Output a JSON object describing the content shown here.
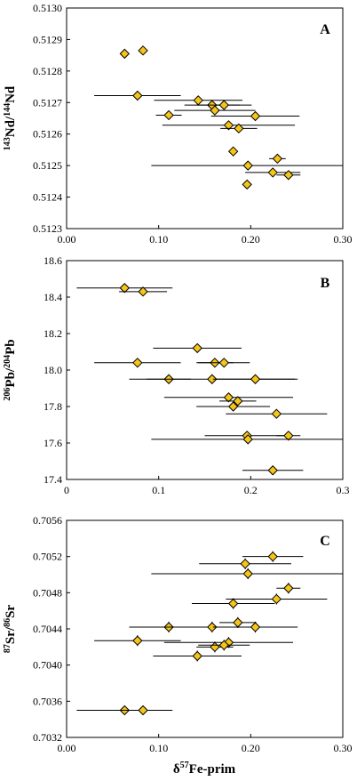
{
  "chart_data": [
    {
      "type": "scatter",
      "panel_label": "A",
      "ylabel": {
        "sup1": "143",
        "base1": "Nd/",
        "sup2": "144",
        "base2": "Nd"
      },
      "xlim": [
        0,
        0.3
      ],
      "ylim": [
        0.5123,
        0.513
      ],
      "x_ticks": [
        "0.00",
        "0.10",
        "0.20",
        "0.30"
      ],
      "y_ticks": [
        "0.5123",
        "0.5124",
        "0.5125",
        "0.5126",
        "0.5127",
        "0.5128",
        "0.5129",
        "0.5130"
      ],
      "y_tick_values": [
        0.5123,
        0.5124,
        0.5125,
        0.5126,
        0.5127,
        0.5128,
        0.5129,
        0.513
      ],
      "marker_color": "#f5c518",
      "points": [
        {
          "x": 0.063,
          "y": 0.512855,
          "xerr": 0,
          "yerr": 1e-05
        },
        {
          "x": 0.083,
          "y": 0.512865,
          "xerr": 0,
          "yerr": 1e-05
        },
        {
          "x": 0.077,
          "y": 0.512722,
          "xerr": 0.047,
          "yerr": 1e-05
        },
        {
          "x": 0.143,
          "y": 0.512707,
          "xerr": 0.048,
          "yerr": 1e-05
        },
        {
          "x": 0.158,
          "y": 0.512692,
          "xerr": 0.03,
          "yerr": 1e-05
        },
        {
          "x": 0.161,
          "y": 0.512675,
          "xerr": 0.044,
          "yerr": 1e-05
        },
        {
          "x": 0.171,
          "y": 0.512692,
          "xerr": 0.03,
          "yerr": 1e-05
        },
        {
          "x": 0.111,
          "y": 0.51266,
          "xerr": 0.014,
          "yerr": 1e-05
        },
        {
          "x": 0.205,
          "y": 0.512657,
          "xerr": 0.048,
          "yerr": 1e-05
        },
        {
          "x": 0.176,
          "y": 0.512628,
          "xerr": 0.072,
          "yerr": 1e-05
        },
        {
          "x": 0.187,
          "y": 0.512618,
          "xerr": 0.02,
          "yerr": 1e-05
        },
        {
          "x": 0.181,
          "y": 0.512545,
          "xerr": 0,
          "yerr": 1e-05
        },
        {
          "x": 0.229,
          "y": 0.512522,
          "xerr": 0.009,
          "yerr": 1e-05
        },
        {
          "x": 0.197,
          "y": 0.5125,
          "xerr": 0.105,
          "yerr": 1e-05
        },
        {
          "x": 0.224,
          "y": 0.512478,
          "xerr": 0.03,
          "yerr": 1e-05
        },
        {
          "x": 0.241,
          "y": 0.51247,
          "xerr": 0.013,
          "yerr": 1e-05
        },
        {
          "x": 0.196,
          "y": 0.51244,
          "xerr": 0,
          "yerr": 1e-05
        }
      ]
    },
    {
      "type": "scatter",
      "panel_label": "B",
      "ylabel": {
        "sup1": "206",
        "base1": "Pb/",
        "sup2": "204",
        "base2": "Pb"
      },
      "xlim": [
        0,
        0.3
      ],
      "ylim": [
        17.4,
        18.6
      ],
      "x_ticks": [
        "0",
        "0.1",
        "0.2",
        "0.3"
      ],
      "y_ticks": [
        "17.4",
        "17.6",
        "17.8",
        "18.0",
        "18.2",
        "18.4",
        "18.6"
      ],
      "y_tick_values": [
        17.4,
        17.6,
        17.8,
        18.0,
        18.2,
        18.4,
        18.6
      ],
      "marker_color": "#f5c518",
      "points": [
        {
          "x": 0.063,
          "y": 18.45,
          "xerr": 0.052,
          "yerr": 0
        },
        {
          "x": 0.083,
          "y": 18.43,
          "xerr": 0.026,
          "yerr": 0
        },
        {
          "x": 0.142,
          "y": 18.12,
          "xerr": 0.048,
          "yerr": 0
        },
        {
          "x": 0.077,
          "y": 18.04,
          "xerr": 0.047,
          "yerr": 0
        },
        {
          "x": 0.161,
          "y": 18.04,
          "xerr": 0.02,
          "yerr": 0
        },
        {
          "x": 0.171,
          "y": 18.04,
          "xerr": 0.028,
          "yerr": 0
        },
        {
          "x": 0.111,
          "y": 17.95,
          "xerr": 0.024,
          "yerr": 0
        },
        {
          "x": 0.158,
          "y": 17.95,
          "xerr": 0.09,
          "yerr": 0
        },
        {
          "x": 0.205,
          "y": 17.95,
          "xerr": 0.046,
          "yerr": 0
        },
        {
          "x": 0.176,
          "y": 17.85,
          "xerr": 0.07,
          "yerr": 0
        },
        {
          "x": 0.186,
          "y": 17.83,
          "xerr": 0.02,
          "yerr": 0
        },
        {
          "x": 0.181,
          "y": 17.8,
          "xerr": 0.04,
          "yerr": 0
        },
        {
          "x": 0.228,
          "y": 17.76,
          "xerr": 0.055,
          "yerr": 0
        },
        {
          "x": 0.196,
          "y": 17.64,
          "xerr": 0.046,
          "yerr": 0
        },
        {
          "x": 0.241,
          "y": 17.64,
          "xerr": 0.013,
          "yerr": 0
        },
        {
          "x": 0.197,
          "y": 17.62,
          "xerr": 0.105,
          "yerr": 0
        },
        {
          "x": 0.224,
          "y": 17.45,
          "xerr": 0.033,
          "yerr": 0
        }
      ]
    },
    {
      "type": "scatter",
      "panel_label": "C",
      "ylabel": {
        "sup1": "87",
        "base1": "Sr/",
        "sup2": "86",
        "base2": "Sr"
      },
      "xlabel": {
        "base1": "δ",
        "sup1": "57",
        "base2": "Fe-prim"
      },
      "xlim": [
        0,
        0.3
      ],
      "ylim": [
        0.7032,
        0.7056
      ],
      "x_ticks": [
        "0.00",
        "0.10",
        "0.20",
        "0.30"
      ],
      "y_ticks": [
        "0.7032",
        "0.7036",
        "0.7040",
        "0.7044",
        "0.7048",
        "0.7052",
        "0.7056"
      ],
      "y_tick_values": [
        0.7032,
        0.7036,
        0.704,
        0.7044,
        0.7048,
        0.7052,
        0.7056
      ],
      "marker_color": "#f5c518",
      "points": [
        {
          "x": 0.224,
          "y": 0.7052,
          "xerr": 0.033,
          "yerr": 6e-05
        },
        {
          "x": 0.194,
          "y": 0.70512,
          "xerr": 0.05,
          "yerr": 6e-05
        },
        {
          "x": 0.197,
          "y": 0.70501,
          "xerr": 0.105,
          "yerr": 6e-05
        },
        {
          "x": 0.241,
          "y": 0.70485,
          "xerr": 0.013,
          "yerr": 6e-05
        },
        {
          "x": 0.228,
          "y": 0.70473,
          "xerr": 0.055,
          "yerr": 6e-05
        },
        {
          "x": 0.181,
          "y": 0.70468,
          "xerr": 0.045,
          "yerr": 6e-05
        },
        {
          "x": 0.186,
          "y": 0.70447,
          "xerr": 0.02,
          "yerr": 6e-05
        },
        {
          "x": 0.111,
          "y": 0.70442,
          "xerr": 0.024,
          "yerr": 6e-05
        },
        {
          "x": 0.158,
          "y": 0.70442,
          "xerr": 0.09,
          "yerr": 6e-05
        },
        {
          "x": 0.205,
          "y": 0.70442,
          "xerr": 0.046,
          "yerr": 6e-05
        },
        {
          "x": 0.077,
          "y": 0.70427,
          "xerr": 0.047,
          "yerr": 6e-05
        },
        {
          "x": 0.176,
          "y": 0.70425,
          "xerr": 0.07,
          "yerr": 6e-05
        },
        {
          "x": 0.161,
          "y": 0.7042,
          "xerr": 0.02,
          "yerr": 6e-05
        },
        {
          "x": 0.171,
          "y": 0.70422,
          "xerr": 0.028,
          "yerr": 6e-05
        },
        {
          "x": 0.142,
          "y": 0.7041,
          "xerr": 0.048,
          "yerr": 6e-05
        },
        {
          "x": 0.063,
          "y": 0.7035,
          "xerr": 0.052,
          "yerr": 0
        },
        {
          "x": 0.083,
          "y": 0.7035,
          "xerr": 0.026,
          "yerr": 0
        }
      ]
    }
  ]
}
